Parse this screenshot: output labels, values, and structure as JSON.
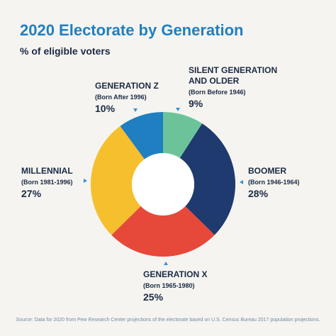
{
  "header": {
    "title": "2020 Electorate by Generation",
    "subtitle": "% of eligible voters"
  },
  "chart_data": {
    "type": "pie",
    "style": "donut",
    "categories": [
      "Silent Generation and Older",
      "Boomer",
      "Generation X",
      "Millennial",
      "Generation Z"
    ],
    "values": [
      9,
      28,
      25,
      27,
      10
    ],
    "colors": [
      "#6cc39a",
      "#1e3a6e",
      "#e6483a",
      "#f6bf2e",
      "#1f7fc0"
    ],
    "labels": [
      {
        "name_lines": [
          "SILENT GENERATION",
          "AND OLDER"
        ],
        "born": "(Born Before 1946)",
        "pct": "9%"
      },
      {
        "name_lines": [
          "BOOMER"
        ],
        "born": "(Born 1946-1964)",
        "pct": "28%"
      },
      {
        "name_lines": [
          "GENERATION X"
        ],
        "born": "(Born 1965-1980)",
        "pct": "25%"
      },
      {
        "name_lines": [
          "MILLENNIAL"
        ],
        "born": "(Born 1981-1996)",
        "pct": "27%"
      },
      {
        "name_lines": [
          "GENERATION Z"
        ],
        "born": "(Born After 1996)",
        "pct": "10%"
      }
    ]
  },
  "footer": {
    "source": "Source: Data for 2020 from Pew Research Center projections of the electorate based on U.S. Census Bureau 2017 population projections."
  }
}
